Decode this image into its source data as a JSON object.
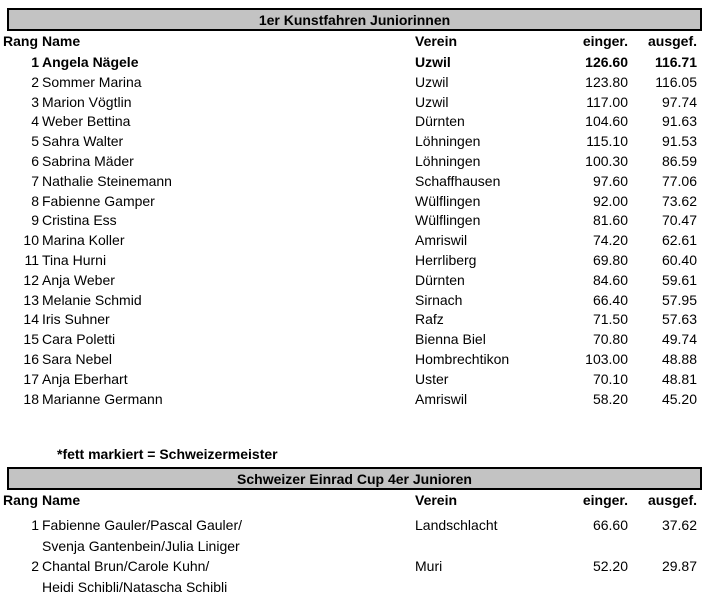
{
  "note": "*fett markiert = Schweizermeister",
  "colors": {
    "background": "#ffffff",
    "text": "#000000",
    "title_bar_fill": "#c3c3c3",
    "title_bar_border": "#000000"
  },
  "columns": {
    "rank": "Rang",
    "name": "Name",
    "club": "Verein",
    "entered": "einger.",
    "executed": "ausgef."
  },
  "tables": [
    {
      "title": "1er Kunstfahren Juniorinnen",
      "rows": [
        {
          "rank": "1",
          "name": "Angela Nägele",
          "club": "Uzwil",
          "entered": "126.60",
          "executed": "116.71",
          "bold": true
        },
        {
          "rank": "2",
          "name": "Sommer Marina",
          "club": "Uzwil",
          "entered": "123.80",
          "executed": "116.05"
        },
        {
          "rank": "3",
          "name": "Marion Vögtlin",
          "club": "Uzwil",
          "entered": "117.00",
          "executed": "97.74"
        },
        {
          "rank": "4",
          "name": "Weber Bettina",
          "club": "Dürnten",
          "entered": "104.60",
          "executed": "91.63"
        },
        {
          "rank": "5",
          "name": "Sahra Walter",
          "club": "Löhningen",
          "entered": "115.10",
          "executed": "91.53"
        },
        {
          "rank": "6",
          "name": "Sabrina Mäder",
          "club": "Löhningen",
          "entered": "100.30",
          "executed": "86.59"
        },
        {
          "rank": "7",
          "name": "Nathalie Steinemann",
          "club": "Schaffhausen",
          "entered": "97.60",
          "executed": "77.06"
        },
        {
          "rank": "8",
          "name": "Fabienne Gamper",
          "club": "Wülflingen",
          "entered": "92.00",
          "executed": "73.62"
        },
        {
          "rank": "9",
          "name": "Cristina Ess",
          "club": "Wülflingen",
          "entered": "81.60",
          "executed": "70.47"
        },
        {
          "rank": "10",
          "name": "Marina Koller",
          "club": "Amriswil",
          "entered": "74.20",
          "executed": "62.61"
        },
        {
          "rank": "11",
          "name": "Tina Hurni",
          "club": "Herrliberg",
          "entered": "69.80",
          "executed": "60.40"
        },
        {
          "rank": "12",
          "name": "Anja Weber",
          "club": "Dürnten",
          "entered": "84.60",
          "executed": "59.61"
        },
        {
          "rank": "13",
          "name": "Melanie Schmid",
          "club": "Sirnach",
          "entered": "66.40",
          "executed": "57.95"
        },
        {
          "rank": "14",
          "name": "Iris Suhner",
          "club": "Rafz",
          "entered": "71.50",
          "executed": "57.63"
        },
        {
          "rank": "15",
          "name": "Cara Poletti",
          "club": "Bienna Biel",
          "entered": "70.80",
          "executed": "49.74"
        },
        {
          "rank": "16",
          "name": "Sara Nebel",
          "club": "Hombrechtikon",
          "entered": "103.00",
          "executed": "48.88"
        },
        {
          "rank": "17",
          "name": "Anja Eberhart",
          "club": "Uster",
          "entered": "70.10",
          "executed": "48.81"
        },
        {
          "rank": "18",
          "name": "Marianne Germann",
          "club": "Amriswil",
          "entered": "58.20",
          "executed": "45.20"
        }
      ]
    },
    {
      "title": "Schweizer Einrad Cup 4er Junioren",
      "rows": [
        {
          "rank": "1",
          "name_lines": [
            "Fabienne Gauler/Pascal Gauler/",
            "Svenja Gantenbein/Julia Liniger"
          ],
          "club": "Landschlacht",
          "entered": "66.60",
          "executed": "37.62"
        },
        {
          "rank": "2",
          "name_lines": [
            "Chantal Brun/Carole Kuhn/",
            "Heidi Schibli/Natascha Schibli"
          ],
          "club": "Muri",
          "entered": "52.20",
          "executed": "29.87"
        }
      ]
    }
  ]
}
